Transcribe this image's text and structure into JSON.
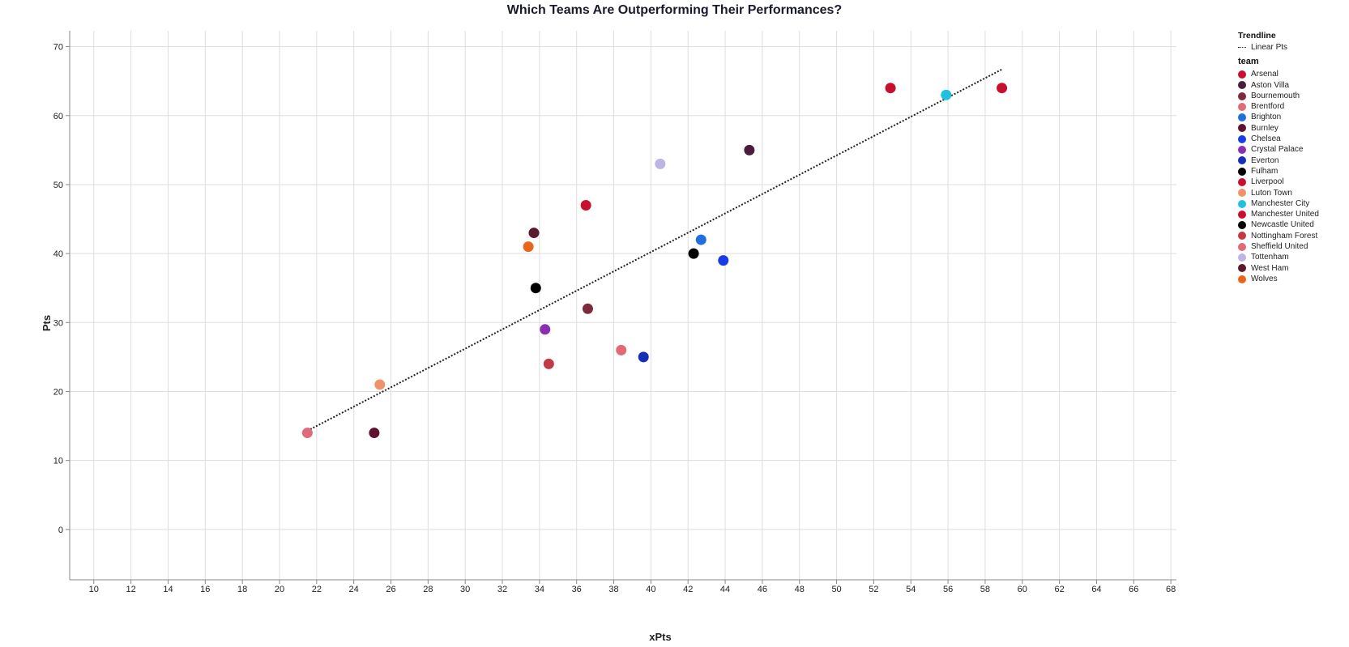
{
  "chart_data": {
    "type": "scatter",
    "title": "Which Teams Are Outperforming Their Performances?",
    "xlabel": "xPts",
    "ylabel": "Pts",
    "xlim": [
      8.7,
      68.3
    ],
    "ylim": [
      -7.3,
      72.3
    ],
    "x_ticks": [
      10,
      12,
      14,
      16,
      18,
      20,
      22,
      24,
      26,
      28,
      30,
      32,
      34,
      36,
      38,
      40,
      42,
      44,
      46,
      48,
      50,
      52,
      54,
      56,
      58,
      60,
      62,
      64,
      66,
      68
    ],
    "y_ticks": [
      0,
      10,
      20,
      30,
      40,
      50,
      60,
      70
    ],
    "grid": true,
    "legend_position": "right",
    "trendline": {
      "legend_title": "Trendline",
      "label": "Linear Pts",
      "style": "dotted",
      "color": "#222222",
      "x": [
        21.5,
        58.9
      ],
      "y": [
        14.3,
        66.7
      ]
    },
    "legend_title": "team",
    "series": [
      {
        "name": "Arsenal",
        "color": "#c8102e",
        "x": 58.9,
        "y": 64
      },
      {
        "name": "Aston Villa",
        "color": "#4a1d3f",
        "x": 45.3,
        "y": 55
      },
      {
        "name": "Bournemouth",
        "color": "#7d2a3c",
        "x": 36.6,
        "y": 32
      },
      {
        "name": "Brentford",
        "color": "#e06a77",
        "x": 38.4,
        "y": 26
      },
      {
        "name": "Brighton",
        "color": "#1f6fdc",
        "x": 42.7,
        "y": 42
      },
      {
        "name": "Burnley",
        "color": "#5e1230",
        "x": 25.1,
        "y": 14
      },
      {
        "name": "Chelsea",
        "color": "#1a3ce8",
        "x": 43.9,
        "y": 39
      },
      {
        "name": "Crystal Palace",
        "color": "#8a2fb4",
        "x": 34.3,
        "y": 29
      },
      {
        "name": "Everton",
        "color": "#1530b8",
        "x": 39.6,
        "y": 25
      },
      {
        "name": "Fulham",
        "color": "#000000",
        "x": 42.3,
        "y": 40
      },
      {
        "name": "Liverpool",
        "color": "#c8102e",
        "x": 36.5,
        "y": 47
      },
      {
        "name": "Luton Town",
        "color": "#f0936a",
        "x": 25.4,
        "y": 21
      },
      {
        "name": "Manchester City",
        "color": "#1fc1de",
        "x": 55.9,
        "y": 63
      },
      {
        "name": "Manchester United",
        "color": "#c8102e",
        "x": 52.9,
        "y": 64
      },
      {
        "name": "Newcastle United",
        "color": "#000000",
        "x": 33.8,
        "y": 35
      },
      {
        "name": "Nottingham Forest",
        "color": "#c23b44",
        "x": 34.5,
        "y": 24
      },
      {
        "name": "Sheffield United",
        "color": "#e06a77",
        "x": 21.5,
        "y": 14
      },
      {
        "name": "Tottenham",
        "color": "#bdb4e6",
        "x": 40.5,
        "y": 53
      },
      {
        "name": "West Ham",
        "color": "#5a1a2e",
        "x": 33.7,
        "y": 43
      },
      {
        "name": "Wolves",
        "color": "#e8661c",
        "x": 33.4,
        "y": 41
      }
    ]
  }
}
